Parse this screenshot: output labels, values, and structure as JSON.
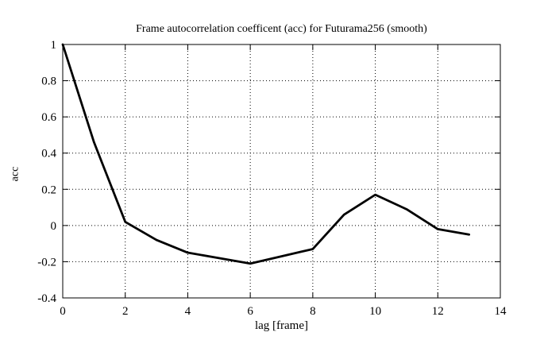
{
  "chart_data": {
    "type": "line",
    "title": "Frame autocorrelation coefficent (acc) for Futurama256 (smooth)",
    "xlabel": "lag [frame]",
    "ylabel": "acc",
    "x": [
      0,
      1,
      2,
      3,
      4,
      5,
      6,
      7,
      8,
      9,
      10,
      11,
      12,
      13
    ],
    "y": [
      1.0,
      0.46,
      0.02,
      -0.08,
      -0.15,
      -0.18,
      -0.21,
      -0.17,
      -0.13,
      0.06,
      0.17,
      0.09,
      -0.02,
      -0.05
    ],
    "xlim": [
      0,
      14
    ],
    "ylim": [
      -0.4,
      1
    ],
    "xticks": [
      0,
      2,
      4,
      6,
      8,
      10,
      12,
      14
    ],
    "xtick_labels": [
      "0",
      "2",
      "4",
      "6",
      "8",
      "10",
      "12",
      "14"
    ],
    "yticks": [
      -0.4,
      -0.2,
      0,
      0.2,
      0.4,
      0.6,
      0.8,
      1
    ],
    "ytick_labels": [
      "-0.4",
      "-0.2",
      "0",
      "0.2",
      "0.4",
      "0.6",
      "0.8",
      "1"
    ],
    "grid": "dotted",
    "legend": "none",
    "line_color": "#000000",
    "background_color": "#ffffff"
  }
}
